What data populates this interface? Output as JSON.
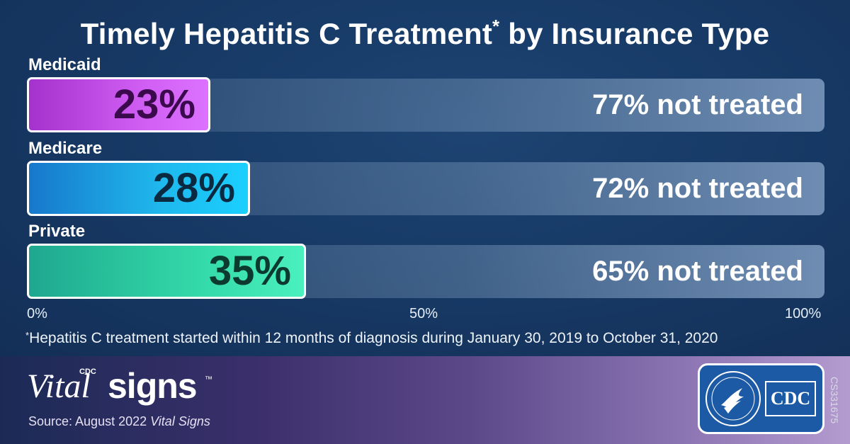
{
  "chart_data": {
    "type": "bar",
    "orientation": "horizontal",
    "stacked": true,
    "title": "Timely Hepatitis C Treatment",
    "title_marker": "*",
    "title_suffix": "by Insurance Type",
    "categories": [
      "Medicaid",
      "Medicare",
      "Private"
    ],
    "series": [
      {
        "name": "",
        "values": [
          23,
          28,
          35
        ],
        "labels": [
          "23%",
          "28%",
          "35%"
        ],
        "colors": [
          "#cf5cf2",
          "#1fb8ec",
          "#33d8a8"
        ]
      },
      {
        "name": "",
        "values": [
          77,
          72,
          65
        ],
        "labels": [
          "77% not treated",
          "72% not treated",
          "65% not treated"
        ],
        "color": "#6f8db3"
      }
    ],
    "xlim": [
      0,
      100
    ],
    "xticks": [
      "0%",
      "50%",
      "100%"
    ],
    "footnote_marker": "*",
    "footnote": "Hepatitis C treatment started within 12 months of diagnosis during January 30, 2019 to October 31, 2020"
  },
  "footer": {
    "logo_cdc": "CDC",
    "logo_vital": "Vital",
    "logo_signs": "signs",
    "logo_tm": "™",
    "source_prefix": "Source: August 2022 ",
    "source_italic": "Vital Signs",
    "badge_seal_icon": "hhs-eagle-seal-icon",
    "badge_cdc": "CDC",
    "code": "CS331675"
  }
}
